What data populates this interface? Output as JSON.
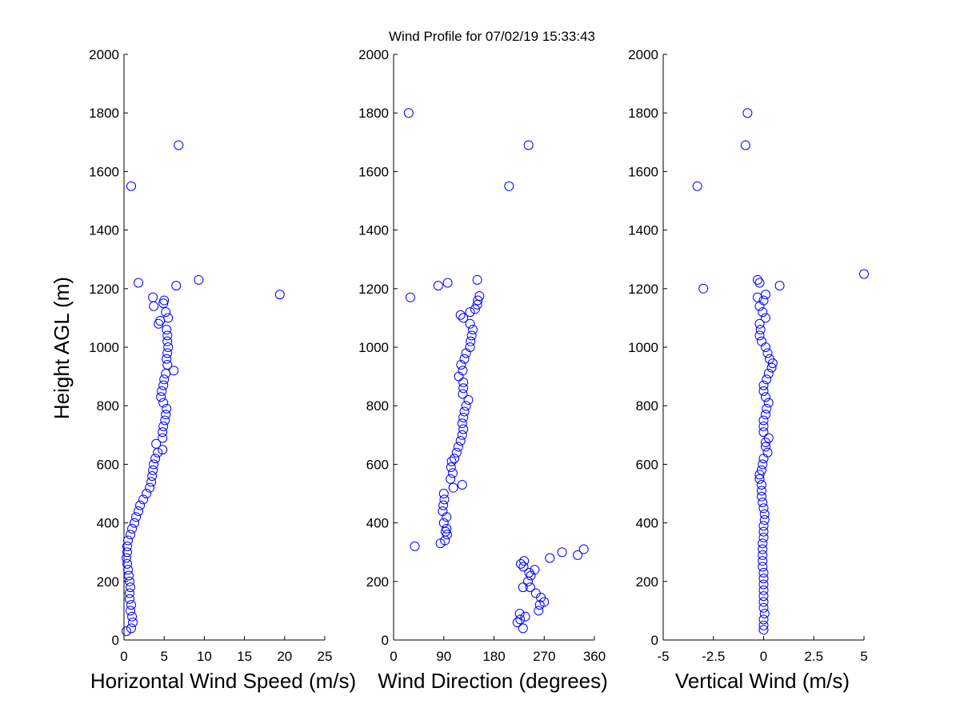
{
  "figure": {
    "title": "Wind Profile for  07/02/19 15:33:43",
    "ylabel": "Height AGL (m)",
    "marker_color": "#0000ff"
  },
  "chart_data": [
    {
      "type": "scatter",
      "id": "speed",
      "title": "Wind Profile for  07/02/19 15:33:43",
      "xlabel": "Horizontal Wind Speed (m/s)",
      "ylabel": "Height AGL (m)",
      "xlim": [
        0,
        25
      ],
      "ylim": [
        0,
        2000
      ],
      "xticks": [
        0,
        5,
        10,
        15,
        20,
        25
      ],
      "xtick_labels": [
        "0",
        "5",
        "10",
        "15",
        "20",
        "25"
      ],
      "yticks": [
        0,
        200,
        400,
        600,
        800,
        1000,
        1200,
        1400,
        1600,
        1800,
        2000
      ],
      "grid": false,
      "points": [
        [
          0.3,
          30
        ],
        [
          0.9,
          40
        ],
        [
          1.1,
          60
        ],
        [
          1.0,
          80
        ],
        [
          0.8,
          100
        ],
        [
          0.9,
          120
        ],
        [
          0.7,
          140
        ],
        [
          0.7,
          160
        ],
        [
          0.8,
          180
        ],
        [
          0.7,
          200
        ],
        [
          0.6,
          220
        ],
        [
          0.5,
          240
        ],
        [
          0.4,
          260
        ],
        [
          0.3,
          280
        ],
        [
          0.4,
          300
        ],
        [
          0.4,
          320
        ],
        [
          0.5,
          340
        ],
        [
          0.8,
          360
        ],
        [
          1.0,
          380
        ],
        [
          1.3,
          400
        ],
        [
          1.5,
          420
        ],
        [
          1.8,
          440
        ],
        [
          2.0,
          460
        ],
        [
          2.4,
          480
        ],
        [
          2.8,
          500
        ],
        [
          3.2,
          520
        ],
        [
          3.4,
          540
        ],
        [
          3.5,
          560
        ],
        [
          3.6,
          580
        ],
        [
          3.7,
          600
        ],
        [
          3.9,
          620
        ],
        [
          4.2,
          640
        ],
        [
          4.8,
          650
        ],
        [
          4.0,
          670
        ],
        [
          4.8,
          690
        ],
        [
          4.8,
          710
        ],
        [
          4.9,
          730
        ],
        [
          5.1,
          750
        ],
        [
          5.2,
          770
        ],
        [
          5.3,
          790
        ],
        [
          4.9,
          810
        ],
        [
          4.6,
          830
        ],
        [
          4.7,
          850
        ],
        [
          4.9,
          870
        ],
        [
          5.0,
          890
        ],
        [
          5.2,
          910
        ],
        [
          6.2,
          920
        ],
        [
          5.4,
          940
        ],
        [
          5.3,
          960
        ],
        [
          5.4,
          980
        ],
        [
          5.5,
          1000
        ],
        [
          5.4,
          1020
        ],
        [
          5.4,
          1040
        ],
        [
          5.3,
          1060
        ],
        [
          4.3,
          1080
        ],
        [
          4.5,
          1090
        ],
        [
          5.5,
          1100
        ],
        [
          5.2,
          1120
        ],
        [
          3.7,
          1140
        ],
        [
          4.9,
          1150
        ],
        [
          5.0,
          1160
        ],
        [
          3.6,
          1170
        ],
        [
          6.5,
          1210
        ],
        [
          1.8,
          1220
        ],
        [
          9.3,
          1230
        ],
        [
          19.4,
          1180
        ],
        [
          0.9,
          1550
        ],
        [
          6.8,
          1690
        ]
      ]
    },
    {
      "type": "scatter",
      "id": "direction",
      "xlabel": "Wind Direction (degrees)",
      "ylabel": "Height AGL (m)",
      "xlim": [
        0,
        360
      ],
      "ylim": [
        0,
        2000
      ],
      "xticks": [
        0,
        90,
        180,
        270,
        360
      ],
      "xtick_labels": [
        "0",
        "90",
        "180",
        "270",
        "360"
      ],
      "yticks": [
        0,
        200,
        400,
        600,
        800,
        1000,
        1200,
        1400,
        1600,
        1800,
        2000
      ],
      "grid": false,
      "points": [
        [
          232,
          40
        ],
        [
          222,
          60
        ],
        [
          227,
          70
        ],
        [
          236,
          80
        ],
        [
          226,
          90
        ],
        [
          260,
          100
        ],
        [
          262,
          120
        ],
        [
          270,
          130
        ],
        [
          264,
          145
        ],
        [
          255,
          160
        ],
        [
          245,
          180
        ],
        [
          232,
          180
        ],
        [
          241,
          200
        ],
        [
          246,
          220
        ],
        [
          243,
          230
        ],
        [
          253,
          240
        ],
        [
          233,
          250
        ],
        [
          228,
          260
        ],
        [
          234,
          270
        ],
        [
          280,
          280
        ],
        [
          330,
          290
        ],
        [
          302,
          300
        ],
        [
          341,
          310
        ],
        [
          38,
          320
        ],
        [
          84,
          330
        ],
        [
          92,
          340
        ],
        [
          96,
          360
        ],
        [
          93,
          370
        ],
        [
          95,
          380
        ],
        [
          90,
          400
        ],
        [
          95,
          420
        ],
        [
          88,
          440
        ],
        [
          89,
          460
        ],
        [
          91,
          480
        ],
        [
          90,
          500
        ],
        [
          107,
          520
        ],
        [
          123,
          530
        ],
        [
          102,
          550
        ],
        [
          106,
          570
        ],
        [
          103,
          590
        ],
        [
          104,
          610
        ],
        [
          109,
          620
        ],
        [
          113,
          640
        ],
        [
          116,
          660
        ],
        [
          120,
          680
        ],
        [
          123,
          700
        ],
        [
          125,
          720
        ],
        [
          123,
          740
        ],
        [
          125,
          760
        ],
        [
          127,
          780
        ],
        [
          130,
          800
        ],
        [
          134,
          820
        ],
        [
          124,
          840
        ],
        [
          125,
          860
        ],
        [
          125,
          880
        ],
        [
          117,
          900
        ],
        [
          124,
          920
        ],
        [
          121,
          940
        ],
        [
          127,
          960
        ],
        [
          130,
          980
        ],
        [
          137,
          1000
        ],
        [
          138,
          1020
        ],
        [
          140,
          1040
        ],
        [
          142,
          1060
        ],
        [
          137,
          1080
        ],
        [
          125,
          1100
        ],
        [
          120,
          1110
        ],
        [
          137,
          1120
        ],
        [
          146,
          1130
        ],
        [
          150,
          1145
        ],
        [
          151,
          1160
        ],
        [
          154,
          1175
        ],
        [
          30,
          1170
        ],
        [
          80,
          1210
        ],
        [
          97,
          1220
        ],
        [
          150,
          1230
        ],
        [
          207,
          1550
        ],
        [
          242,
          1690
        ],
        [
          27,
          1800
        ]
      ]
    },
    {
      "type": "scatter",
      "id": "vertical",
      "xlabel": "Vertical Wind (m/s)",
      "ylabel": "Height AGL (m)",
      "xlim": [
        -5,
        5
      ],
      "ylim": [
        0,
        2000
      ],
      "xticks": [
        -5,
        -2.5,
        0,
        2.5,
        5
      ],
      "xtick_labels": [
        "-5",
        "-2.5",
        "0",
        "2.5",
        "5"
      ],
      "yticks": [
        0,
        200,
        400,
        600,
        800,
        1000,
        1200,
        1400,
        1600,
        1800,
        2000
      ],
      "grid": false,
      "points": [
        [
          0.0,
          35
        ],
        [
          0.0,
          50
        ],
        [
          0.0,
          70
        ],
        [
          0.05,
          90
        ],
        [
          0.0,
          110
        ],
        [
          0.0,
          130
        ],
        [
          0.0,
          150
        ],
        [
          0.0,
          170
        ],
        [
          0.0,
          190
        ],
        [
          0.0,
          210
        ],
        [
          0.0,
          230
        ],
        [
          -0.05,
          250
        ],
        [
          -0.05,
          270
        ],
        [
          -0.05,
          290
        ],
        [
          -0.05,
          310
        ],
        [
          -0.05,
          330
        ],
        [
          0.0,
          350
        ],
        [
          0.0,
          370
        ],
        [
          0.0,
          390
        ],
        [
          0.05,
          410
        ],
        [
          0.05,
          430
        ],
        [
          0.0,
          450
        ],
        [
          -0.05,
          470
        ],
        [
          -0.1,
          490
        ],
        [
          -0.1,
          510
        ],
        [
          -0.1,
          530
        ],
        [
          -0.2,
          550
        ],
        [
          -0.2,
          565
        ],
        [
          -0.1,
          580
        ],
        [
          -0.05,
          600
        ],
        [
          0.0,
          620
        ],
        [
          0.2,
          640
        ],
        [
          0.1,
          660
        ],
        [
          0.1,
          675
        ],
        [
          0.25,
          690
        ],
        [
          0.0,
          710
        ],
        [
          0.0,
          730
        ],
        [
          0.0,
          750
        ],
        [
          0.1,
          770
        ],
        [
          0.15,
          790
        ],
        [
          0.25,
          810
        ],
        [
          0.1,
          830
        ],
        [
          0.0,
          850
        ],
        [
          0.0,
          870
        ],
        [
          0.15,
          890
        ],
        [
          0.25,
          910
        ],
        [
          0.4,
          930
        ],
        [
          0.45,
          945
        ],
        [
          0.3,
          960
        ],
        [
          0.2,
          980
        ],
        [
          0.1,
          1000
        ],
        [
          -0.1,
          1020
        ],
        [
          -0.2,
          1040
        ],
        [
          -0.15,
          1060
        ],
        [
          -0.2,
          1080
        ],
        [
          0.1,
          1100
        ],
        [
          -0.05,
          1120
        ],
        [
          -0.2,
          1140
        ],
        [
          0.0,
          1160
        ],
        [
          -0.3,
          1170
        ],
        [
          0.1,
          1180
        ],
        [
          0.8,
          1210
        ],
        [
          -0.2,
          1220
        ],
        [
          -0.3,
          1230
        ],
        [
          -3.0,
          1200
        ],
        [
          5.0,
          1250
        ],
        [
          -3.3,
          1550
        ],
        [
          -0.9,
          1690
        ],
        [
          -0.8,
          1800
        ]
      ]
    }
  ]
}
